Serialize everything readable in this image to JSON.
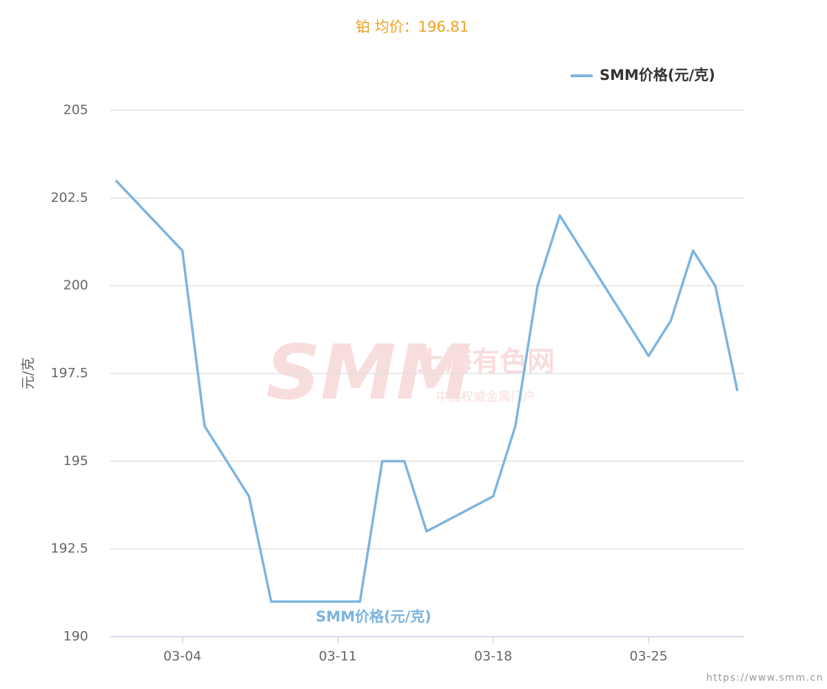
{
  "chart_data": {
    "type": "line",
    "title": "铂 均价：196.81",
    "y_label": "元/克",
    "x": [
      "03-01",
      "03-04",
      "03-05",
      "03-07",
      "03-08",
      "03-11",
      "03-12",
      "03-13",
      "03-14",
      "03-15",
      "03-18",
      "03-19",
      "03-20",
      "03-21",
      "03-25",
      "03-26",
      "03-27",
      "03-28",
      "03-29"
    ],
    "xticks": [
      "03-04",
      "03-11",
      "03-18",
      "03-25"
    ],
    "series": [
      {
        "name": "SMM价格(元/克)",
        "color": "#7cb4e0",
        "values": [
          203,
          201,
          196,
          194,
          191,
          191,
          191,
          195,
          195,
          193,
          194,
          196,
          200,
          202,
          198,
          199,
          201,
          200,
          197
        ]
      }
    ],
    "ylim": [
      190,
      205
    ],
    "yticks": [
      190,
      {
        "value": 192.5,
        "label": "192.5"
      },
      195,
      {
        "value": 197.5,
        "label": "197.5"
      },
      200,
      {
        "value": 202.5,
        "label": "202.5"
      },
      205
    ],
    "grid": true,
    "legend": "top-right",
    "title_color": "#f0a020"
  },
  "watermark": {
    "logo": "SMM",
    "name": "上海有色网",
    "slogan": "中国权威金属门户"
  },
  "footer": "https://www.smm.cn"
}
